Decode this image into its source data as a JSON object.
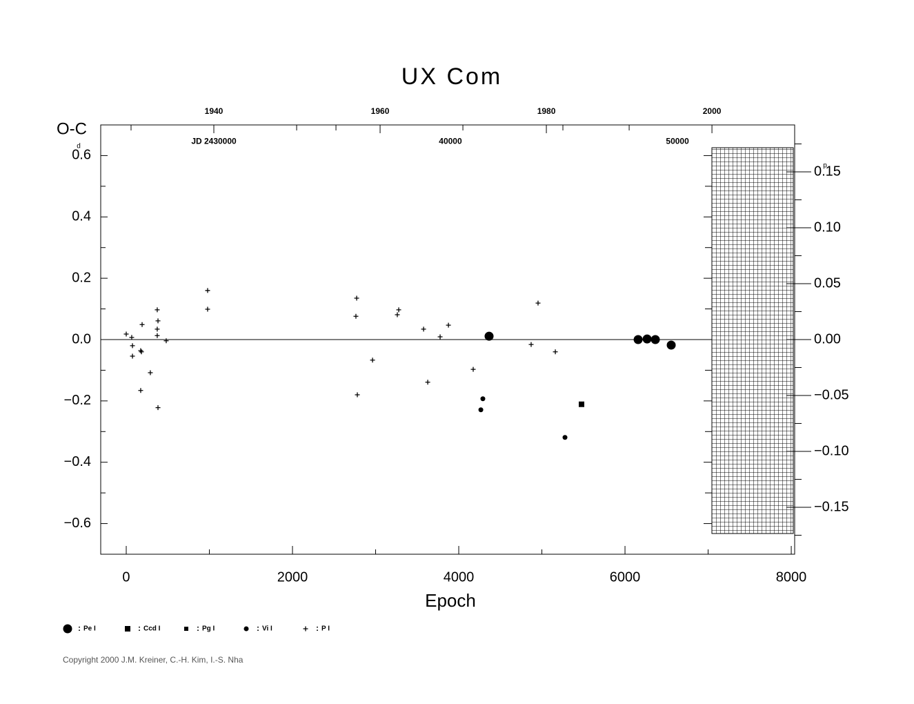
{
  "chart_data": {
    "type": "scatter",
    "title": "UX Com",
    "xlabel": "Epoch",
    "ylabel": "O-C",
    "y_unit": "d",
    "y2_unit": "p",
    "xlim": [
      -307,
      8041
    ],
    "ylim": [
      -0.7,
      0.7
    ],
    "y2lim": [
      -0.192,
      0.192
    ],
    "xticks": [
      0,
      2000,
      4000,
      6000,
      8000
    ],
    "x_minor_ticks": [
      1000,
      3000,
      5000,
      7000
    ],
    "yticks": [
      {
        "value": -0.6,
        "label": "−0.6"
      },
      {
        "value": -0.4,
        "label": "−0.4"
      },
      {
        "value": -0.2,
        "label": "−0.2"
      },
      {
        "value": 0,
        "label": "0.0"
      },
      0.2,
      0.4,
      0.6
    ],
    "y_minor_ticks": [
      -0.5,
      -0.3,
      -0.1,
      0.1,
      0.3,
      0.5
    ],
    "y2ticks": [
      {
        "value": -0.15,
        "label": "−0.15"
      },
      {
        "value": -0.1,
        "label": "−0.10"
      },
      {
        "value": -0.05,
        "label": "−0.05"
      },
      {
        "value": 0,
        "label": "0.00"
      },
      0.05,
      {
        "value": 0.1,
        "label": "0.10"
      },
      0.15
    ],
    "y2_minor_ticks": [
      -0.175,
      -0.125,
      -0.075,
      -0.025,
      0.025,
      0.075,
      0.125,
      0.175
    ],
    "top_ticks": [
      {
        "value": 1054,
        "label": "1940"
      },
      {
        "value": 3054,
        "label": "1960"
      },
      {
        "value": 5054,
        "label": "1980"
      },
      {
        "value": 7046,
        "label": "2000"
      }
    ],
    "top_minor_ticks": [
      58,
      2050,
      4050,
      6050,
      2523,
      5253
    ],
    "annotations": [
      {
        "text": "JD 2430000",
        "x": 1054,
        "y": 0.645
      },
      {
        "text": "40000",
        "x": 3900,
        "y": 0.645
      },
      {
        "text": "50000",
        "x": 6631,
        "y": 0.645
      }
    ],
    "series": [
      {
        "name": "Pe I",
        "marker": "circle-large",
        "color": "#000000",
        "x": [
          4365,
          6158,
          6266,
          6365,
          6556
        ],
        "values": [
          0.011,
          0.0,
          0.002,
          0.0,
          -0.018
        ]
      },
      {
        "name": "Ccd I",
        "marker": "square",
        "color": "#000000",
        "x": [
          5477
        ],
        "values": [
          -0.211
        ]
      },
      {
        "name": "Pg I",
        "marker": "square-small",
        "color": "#000000",
        "x": [],
        "values": []
      },
      {
        "name": "Vi I",
        "marker": "circle",
        "color": "#000000",
        "x": [
          4290,
          4266,
          5278
        ],
        "values": [
          -0.193,
          -0.229,
          -0.319
        ]
      },
      {
        "name": "P I",
        "marker": "plus",
        "color": "#000000",
        "x": [
          0,
          66,
          75,
          75,
          174,
          183,
          191,
          174,
          290,
          373,
          382,
          373,
          373,
          382,
          481,
          979,
          979,
          2772,
          2763,
          2780,
          2963,
          3261,
          3278,
          3577,
          3627,
          3776,
          3876,
          4174,
          4871,
          4954,
          5162
        ],
        "values": [
          0.018,
          0.007,
          -0.02,
          -0.054,
          -0.036,
          -0.04,
          0.049,
          -0.166,
          -0.108,
          0.097,
          0.061,
          0.034,
          0.013,
          -0.222,
          -0.004,
          0.16,
          0.099,
          0.135,
          0.076,
          -0.18,
          -0.067,
          0.081,
          0.097,
          0.034,
          -0.139,
          0.009,
          0.047,
          -0.097,
          -0.016,
          0.119,
          -0.04
        ]
      }
    ],
    "copyright": "Copyright 2000 J.M. Kreiner, C.-H. Kim, I.-S. Nha"
  }
}
